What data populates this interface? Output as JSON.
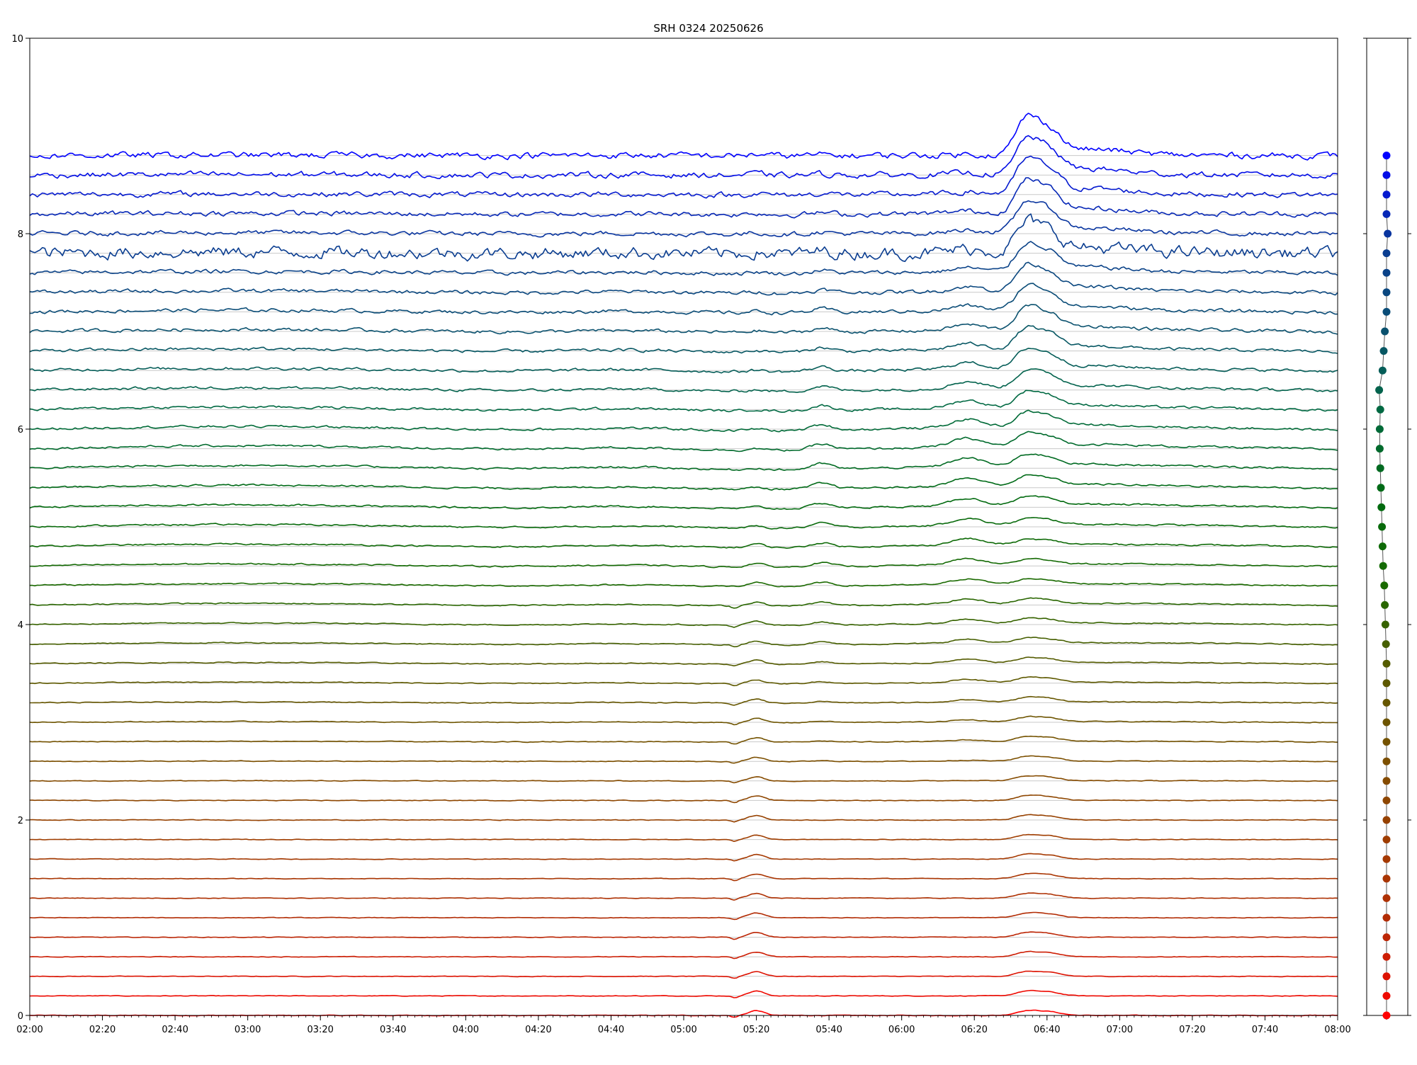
{
  "chart_data": [
    {
      "type": "line",
      "title": "SRH 0324 20250626",
      "xlabel": "",
      "ylabel": "",
      "xlim": [
        "02:00",
        "08:00"
      ],
      "ylim": [
        0,
        10
      ],
      "x_ticks": [
        "02:00",
        "02:20",
        "02:40",
        "03:00",
        "03:20",
        "03:40",
        "04:00",
        "04:20",
        "04:40",
        "05:00",
        "05:20",
        "05:40",
        "06:00",
        "06:20",
        "06:40",
        "07:00",
        "07:20",
        "07:40",
        "08:00"
      ],
      "y_ticks": [
        0,
        2,
        4,
        6,
        8,
        10
      ],
      "grid": "horizontal lines at each trace baseline",
      "legend": "none",
      "series_count": 45,
      "baseline_spacing": 0.2,
      "offsets_top": [
        8.8,
        8.6,
        8.4,
        8.2,
        8.0
      ],
      "color_ramp": [
        "#ff0000",
        "#b52a05",
        "#a13c00",
        "#7a5000",
        "#5a5a00",
        "#1a6a00",
        "#006a10",
        "#006a40",
        "#0a5070",
        "#0a3a95",
        "#0000ff"
      ],
      "events": [
        {
          "time": "05:14",
          "note": "dip in lower channels"
        },
        {
          "time": "05:20",
          "note": "burst"
        },
        {
          "time": "05:38",
          "note": "burst"
        },
        {
          "time": "06:18",
          "note": "burst"
        },
        {
          "time": "06:34",
          "note": "main peak"
        },
        {
          "time": "06:40",
          "note": "main peak"
        }
      ]
    },
    {
      "type": "scatter",
      "title": "",
      "ylim": [
        0,
        10
      ],
      "y": [
        0,
        0.2,
        0.4,
        0.6,
        0.8,
        1.0,
        1.2,
        1.4,
        1.6,
        1.8,
        2.0,
        2.2,
        2.4,
        2.6,
        2.8,
        3.0,
        3.2,
        3.4,
        3.6,
        3.8,
        4.0,
        4.2,
        4.4,
        4.6,
        4.8,
        5.0,
        5.2,
        5.4,
        5.6,
        5.8,
        6.0,
        6.2,
        6.4,
        6.6,
        6.8,
        7.0,
        7.2,
        7.4,
        7.6,
        7.8,
        8.0,
        8.2,
        8.4,
        8.6,
        8.8
      ],
      "x": [
        0,
        0,
        0,
        0,
        0,
        0,
        0,
        0,
        0,
        0,
        0,
        0,
        0,
        0,
        0,
        0,
        0,
        0,
        0,
        -0.1,
        -0.2,
        -0.3,
        -0.4,
        -0.6,
        -0.7,
        -0.8,
        -0.9,
        -1.0,
        -1.1,
        -1.2,
        -1.2,
        -1.1,
        -1.3,
        -0.7,
        -0.5,
        -0.3,
        0,
        0,
        0,
        0,
        0.2,
        0,
        0,
        0,
        0
      ]
    }
  ]
}
